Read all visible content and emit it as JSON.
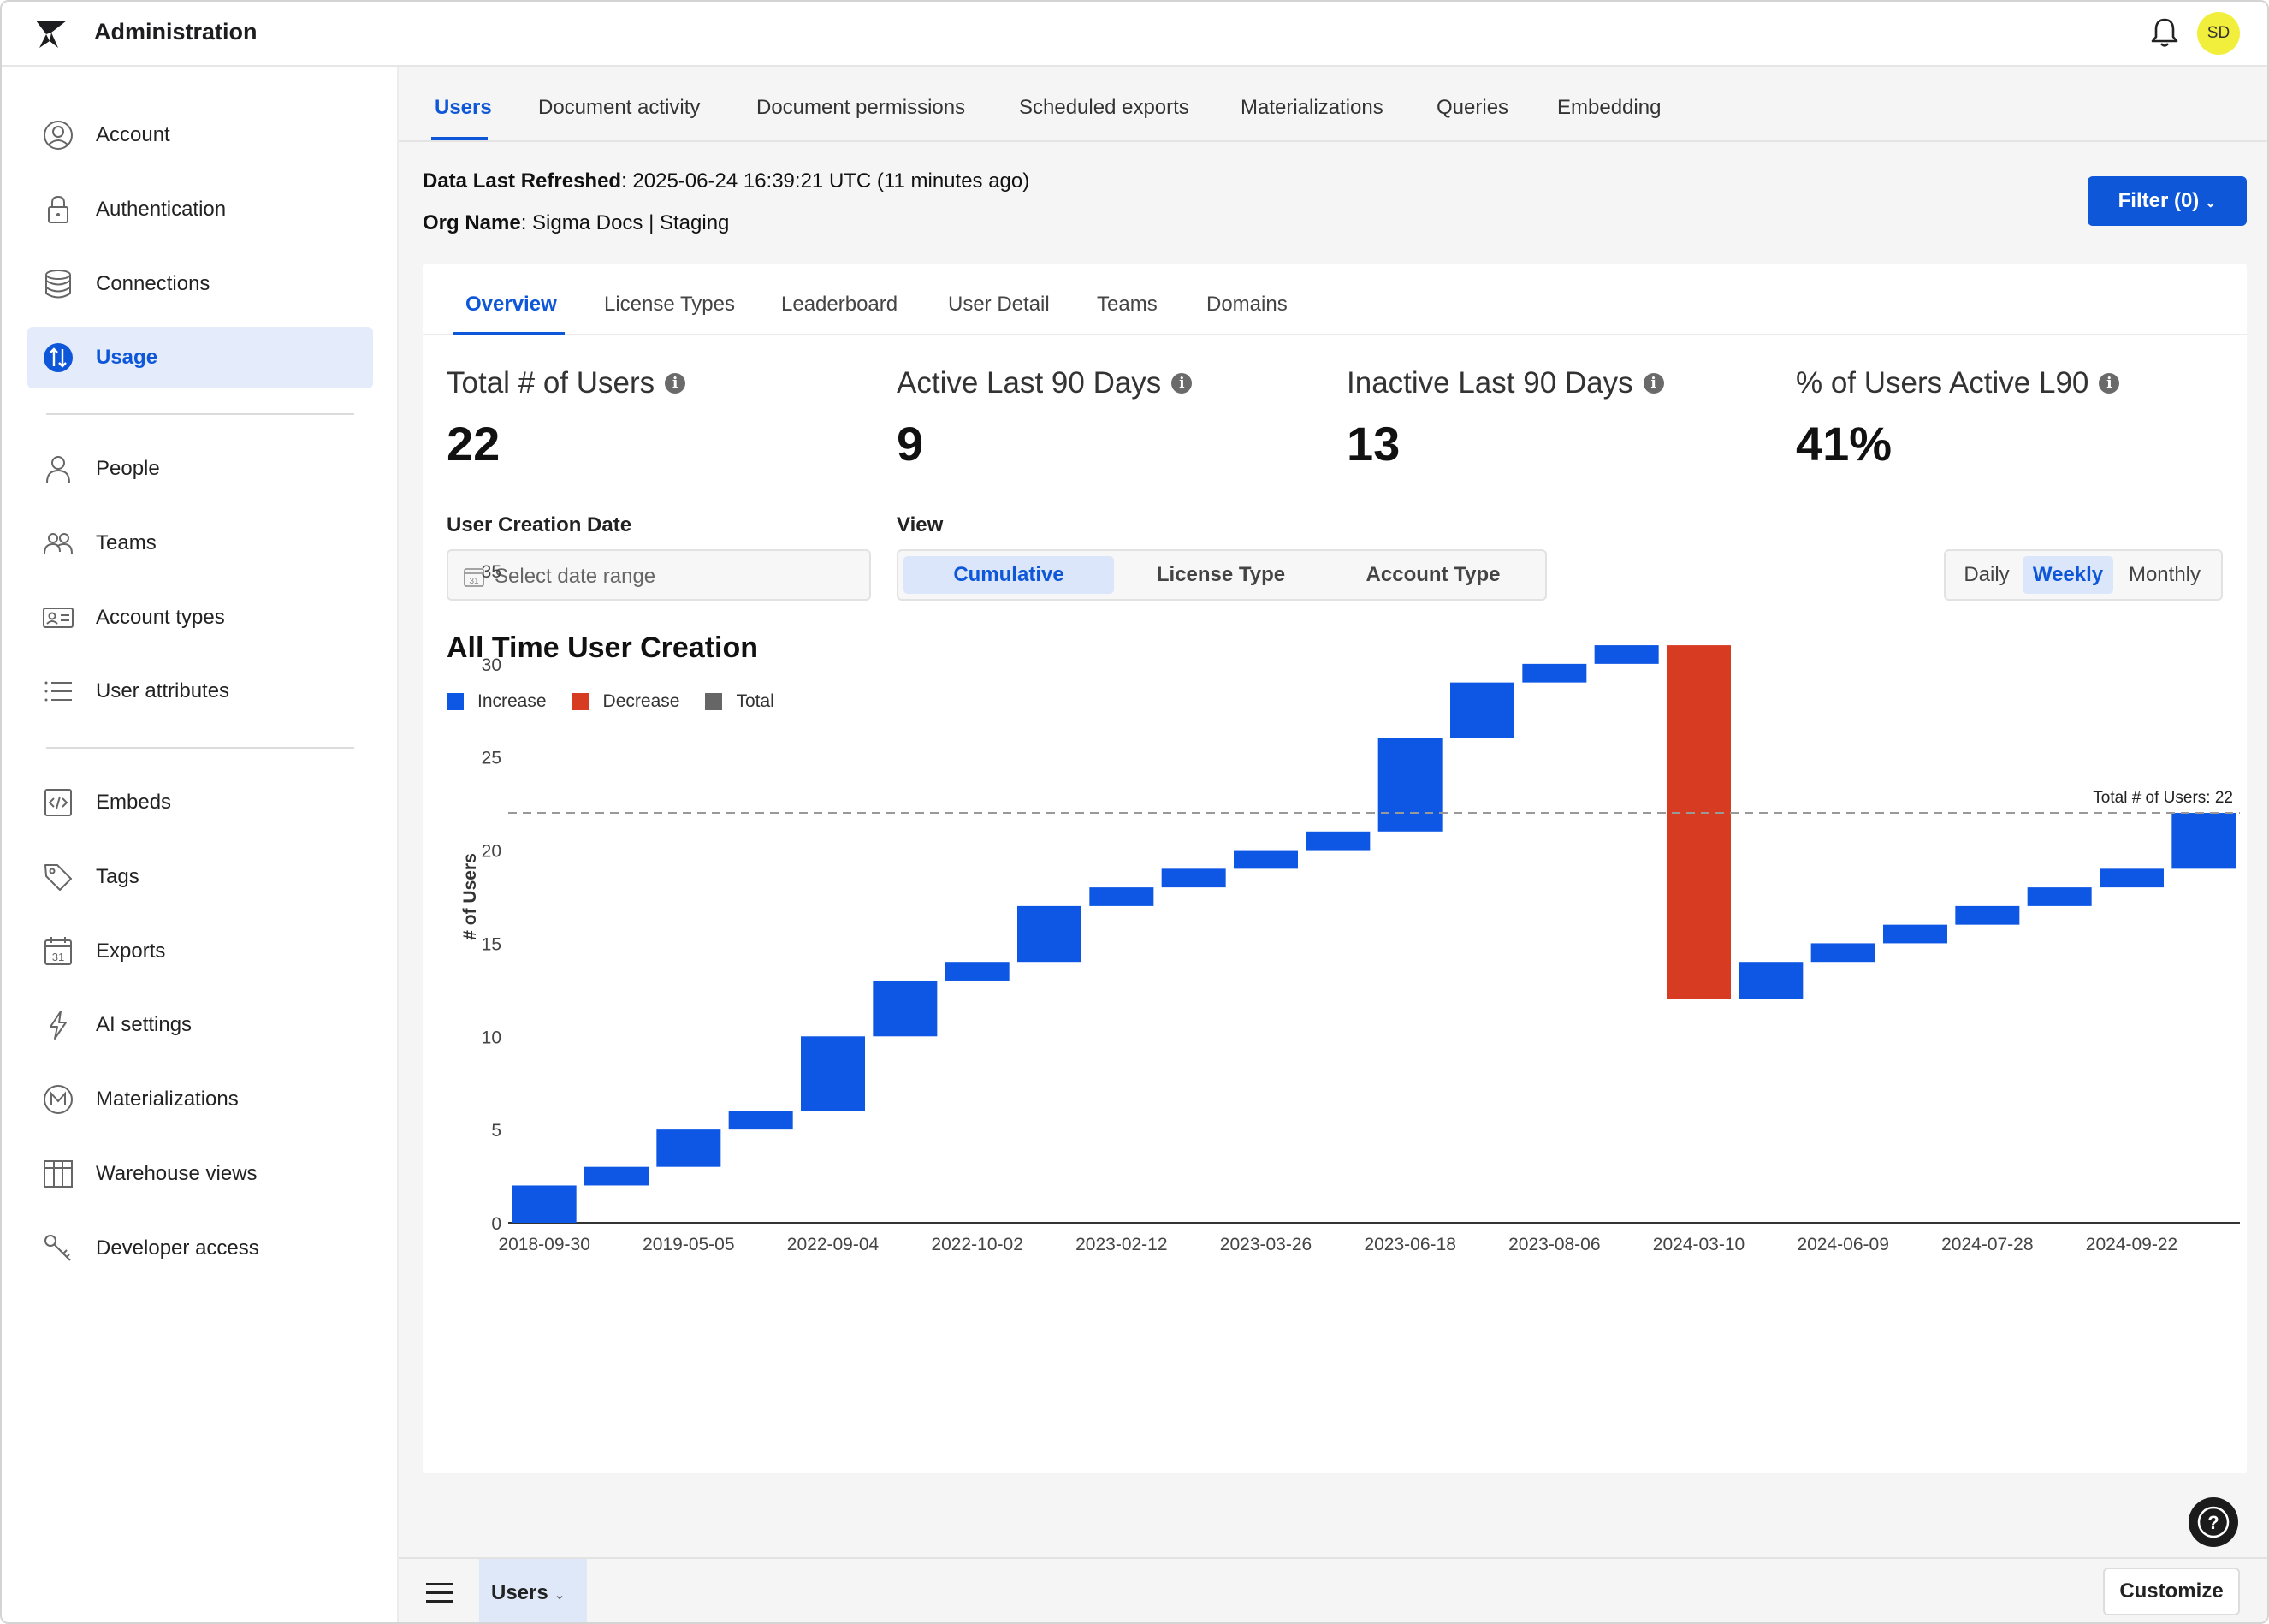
{
  "header": {
    "app_title": "Administration",
    "avatar_initials": "SD"
  },
  "sidebar": {
    "group1": [
      {
        "label": "Account",
        "icon": "account-circle-icon"
      },
      {
        "label": "Authentication",
        "icon": "lock-icon"
      },
      {
        "label": "Connections",
        "icon": "database-icon"
      },
      {
        "label": "Usage",
        "icon": "usage-icon",
        "active": true
      }
    ],
    "group2": [
      {
        "label": "People",
        "icon": "person-icon"
      },
      {
        "label": "Teams",
        "icon": "team-icon"
      },
      {
        "label": "Account types",
        "icon": "id-card-icon"
      },
      {
        "label": "User attributes",
        "icon": "list-icon"
      }
    ],
    "group3": [
      {
        "label": "Embeds",
        "icon": "code-icon"
      },
      {
        "label": "Tags",
        "icon": "tag-icon"
      },
      {
        "label": "Exports",
        "icon": "calendar-icon"
      },
      {
        "label": "AI settings",
        "icon": "lightning-icon"
      },
      {
        "label": "Materializations",
        "icon": "m-circle-icon"
      },
      {
        "label": "Warehouse views",
        "icon": "table-icon"
      },
      {
        "label": "Developer access",
        "icon": "key-icon"
      }
    ]
  },
  "top_tabs": [
    "Users",
    "Document activity",
    "Document permissions",
    "Scheduled exports",
    "Materializations",
    "Queries",
    "Embedding"
  ],
  "info": {
    "refreshed_label": "Data Last Refreshed",
    "refreshed_value": ": 2025-06-24 16:39:21 UTC (11 minutes ago)",
    "org_label": "Org Name",
    "org_value": ": Sigma Docs | Staging"
  },
  "filter_button": "Filter (0)",
  "sub_tabs": [
    "Overview",
    "License Types",
    "Leaderboard",
    "User Detail",
    "Teams",
    "Domains"
  ],
  "kpis": [
    {
      "label": "Total # of Users",
      "value": "22"
    },
    {
      "label": "Active Last 90 Days",
      "value": "9"
    },
    {
      "label": "Inactive Last 90 Days",
      "value": "13"
    },
    {
      "label": "% of Users Active L90",
      "value": "41%"
    }
  ],
  "controls": {
    "date_label": "User Creation Date",
    "date_placeholder": "Select date range",
    "date_icon_text": "31",
    "view_label": "View",
    "view_options": [
      "Cumulative",
      "License Type",
      "Account Type"
    ],
    "view_selected": "Cumulative",
    "granularity_options": [
      "Daily",
      "Weekly",
      "Monthly"
    ],
    "granularity_selected": "Weekly"
  },
  "colors": {
    "increase": "#0d57e4",
    "decrease": "#d73b22",
    "total": "#666666",
    "accent": "#0d57d8"
  },
  "chart_data": {
    "type": "waterfall",
    "title": "All Time User Creation",
    "legend": [
      "Increase",
      "Decrease",
      "Total"
    ],
    "ylabel": "# of Users",
    "ylim": [
      0,
      35
    ],
    "yticks": [
      0,
      5,
      10,
      15,
      20,
      25,
      30,
      35
    ],
    "xtick_labels": [
      "2018-09-30",
      "2019-05-05",
      "2022-09-04",
      "2022-10-02",
      "2023-02-12",
      "2023-03-26",
      "2023-06-18",
      "2023-08-06",
      "2024-03-10",
      "2024-06-09",
      "2024-07-28",
      "2024-09-22"
    ],
    "steps": [
      2,
      1,
      2,
      1,
      4,
      3,
      1,
      3,
      1,
      1,
      1,
      1,
      5,
      3,
      1,
      1,
      -19,
      2,
      1,
      1,
      1,
      1,
      1,
      3
    ],
    "reference_line": {
      "value": 22,
      "label": "Total # of Users: 22"
    }
  },
  "bottom": {
    "sheet_tab": "Users",
    "customize": "Customize",
    "help": "?"
  }
}
